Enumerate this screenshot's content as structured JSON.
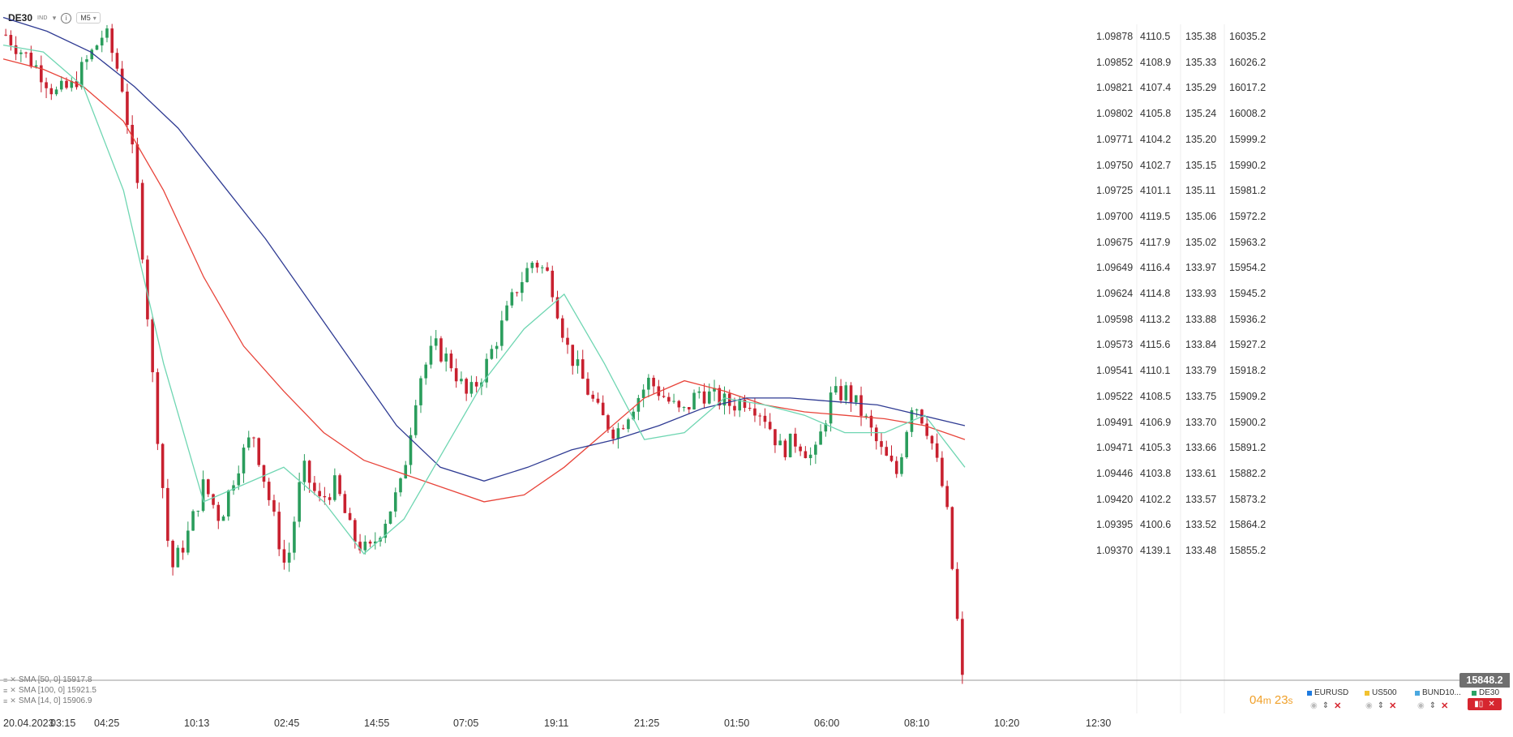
{
  "header": {
    "symbol": "DE30",
    "symbol_badge": "IND",
    "timeframe": "M5"
  },
  "price_columns": [
    {
      "name": "EURUSD",
      "labels": [
        "1.09878",
        "1.09852",
        "1.09821",
        "1.09802",
        "1.09771",
        "1.09750",
        "1.09725",
        "1.09700",
        "1.09675",
        "1.09649",
        "1.09624",
        "1.09598",
        "1.09573",
        "1.09541",
        "1.09522",
        "1.09491",
        "1.09471",
        "1.09446",
        "1.09420",
        "1.09395",
        "1.09370"
      ]
    },
    {
      "name": "US500",
      "labels": [
        "4110.5",
        "4108.9",
        "4107.4",
        "4105.8",
        "4104.2",
        "4102.7",
        "4101.1",
        "4119.5",
        "4117.9",
        "4116.4",
        "4114.8",
        "4113.2",
        "4115.6",
        "4110.1",
        "4108.5",
        "4106.9",
        "4105.3",
        "4103.8",
        "4102.2",
        "4100.6",
        "4139.1"
      ]
    },
    {
      "name": "BUND10",
      "labels": [
        "135.38",
        "135.33",
        "135.29",
        "135.24",
        "135.20",
        "135.15",
        "135.11",
        "135.06",
        "135.02",
        "133.97",
        "133.93",
        "133.88",
        "133.84",
        "133.79",
        "133.75",
        "133.70",
        "133.66",
        "133.61",
        "133.57",
        "133.52",
        "133.48"
      ]
    },
    {
      "name": "DE30",
      "labels": [
        "16035.2",
        "16026.2",
        "16017.2",
        "16008.2",
        "15999.2",
        "15990.2",
        "15981.2",
        "15972.2",
        "15963.2",
        "15954.2",
        "15945.2",
        "15936.2",
        "15927.2",
        "15918.2",
        "15909.2",
        "15900.2",
        "15891.2",
        "15882.2",
        "15873.2",
        "15864.2",
        "15855.2"
      ]
    }
  ],
  "x_axis": [
    "20.04.2023",
    "03:15",
    "04:25",
    "10:13",
    "02:45",
    "14:55",
    "07:05",
    "19:11",
    "21:25",
    "01:50",
    "06:00",
    "08:10",
    "10:20",
    "12:30"
  ],
  "indicators": [
    {
      "label": "SMA [50, 0] 15917.8"
    },
    {
      "label": "SMA [100, 0] 15921.5"
    },
    {
      "label": "SMA [14, 0] 15906.9"
    }
  ],
  "current_price": "15848.2",
  "countdown": {
    "minutes": "04",
    "m_unit": "m",
    "seconds": "23",
    "s_unit": "s"
  },
  "instruments": [
    {
      "label": "EURUSD",
      "color": "#1e7be0"
    },
    {
      "label": "US500",
      "color": "#f2c230"
    },
    {
      "label": "BUND10...",
      "color": "#4aa8e0"
    },
    {
      "label": "DE30",
      "color": "#2aa364"
    }
  ],
  "colors": {
    "bull": "#2a9d5c",
    "bear": "#c8202f",
    "sma_fast": "#6fd6b2",
    "sma_mid": "#e8443a",
    "sma_slow": "#2f3b93",
    "accent": "#f0a02a"
  },
  "chart_data": {
    "type": "candlestick",
    "symbol": "DE30",
    "timeframe": "M5",
    "y_range": [
      15848.2,
      16038.0
    ],
    "trend_path": [
      16035,
      16030,
      16025,
      16018,
      16020,
      16028,
      16036,
      16022,
      15990,
      15930,
      15880,
      15890,
      15905,
      15895,
      15910,
      15920,
      15900,
      15880,
      15910,
      15900,
      15905,
      15890,
      15885,
      15895,
      15905,
      15935,
      15945,
      15940,
      15930,
      15938,
      15950,
      15962,
      15970,
      15965,
      15945,
      15935,
      15925,
      15920,
      15928,
      15935,
      15930,
      15925,
      15932,
      15930,
      15928,
      15930,
      15925,
      15915,
      15918,
      15912,
      15930,
      15932,
      15925,
      15915,
      15908,
      15930,
      15920,
      15900,
      15850
    ],
    "sma": [
      {
        "name": "SMA [50, 0]",
        "points": [
          16028,
          16025,
          16020,
          16010,
          15990,
          15965,
          15945,
          15932,
          15920,
          15912,
          15908,
          15904,
          15900,
          15902,
          15910,
          15920,
          15930,
          15935,
          15932,
          15928,
          15926,
          15925,
          15924,
          15922,
          15918
        ]
      },
      {
        "name": "SMA [100, 0]",
        "points": [
          16040,
          16036,
          16030,
          16020,
          16008,
          15992,
          15976,
          15958,
          15940,
          15922,
          15910,
          15906,
          15910,
          15915,
          15918,
          15922,
          15927,
          15930,
          15930,
          15929,
          15928,
          15925,
          15922
        ]
      },
      {
        "name": "SMA [14, 0]",
        "points": [
          16032,
          16030,
          16020,
          15990,
          15940,
          15900,
          15905,
          15910,
          15900,
          15885,
          15895,
          15915,
          15935,
          15950,
          15960,
          15940,
          15918,
          15920,
          15930,
          15928,
          15925,
          15920,
          15920,
          15925,
          15910
        ]
      }
    ]
  }
}
